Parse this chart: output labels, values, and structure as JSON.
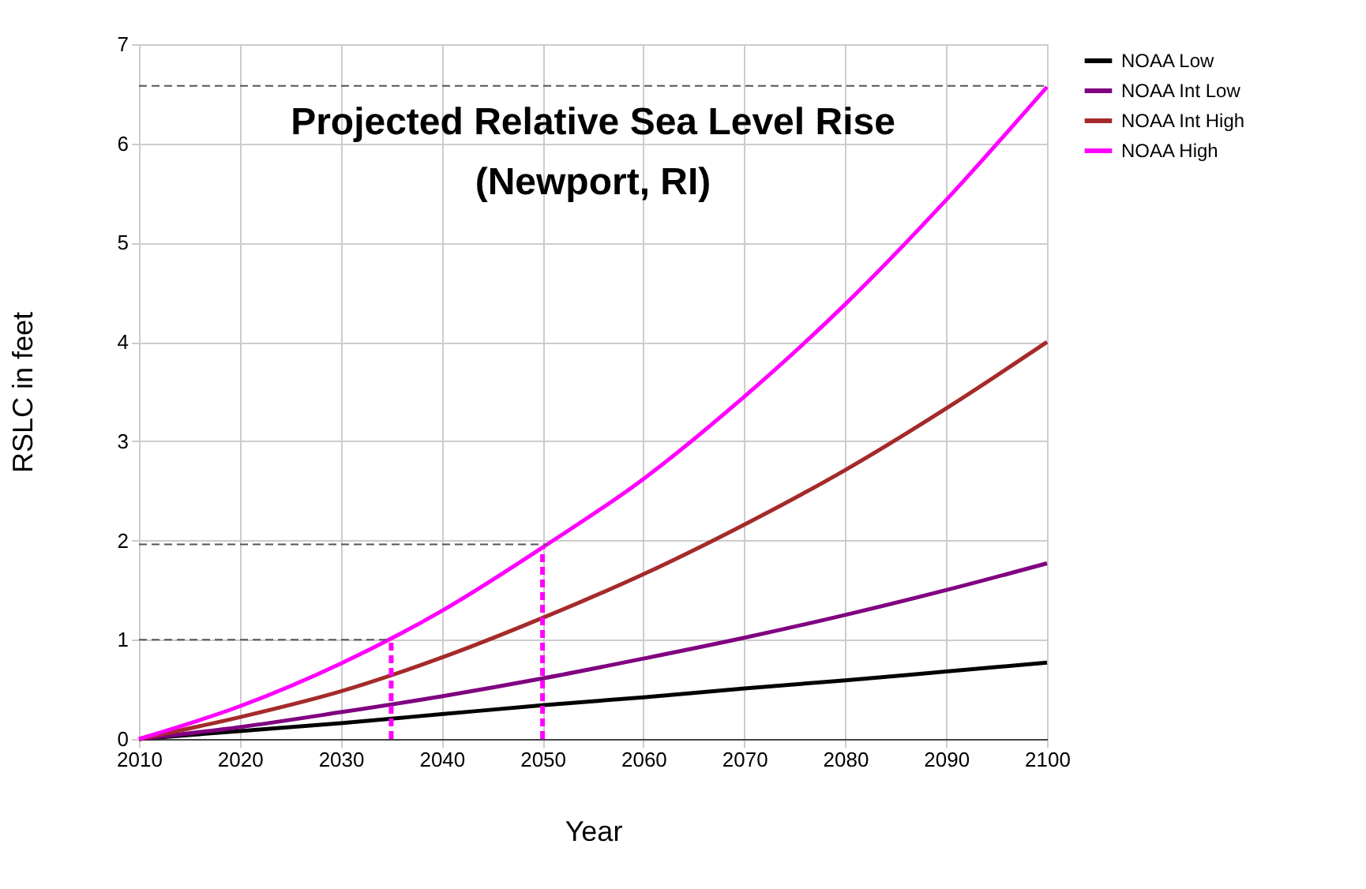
{
  "chart_data": {
    "type": "line",
    "title": "Projected Relative Sea Level Rise",
    "subtitle": "(Newport, RI)",
    "xlabel": "Year",
    "ylabel": "RSLC in feet",
    "x": [
      2010,
      2020,
      2030,
      2040,
      2050,
      2060,
      2070,
      2080,
      2090,
      2100
    ],
    "series": [
      {
        "name": "NOAA Low",
        "color": "#000000",
        "values": [
          0,
          0.08,
          0.16,
          0.25,
          0.34,
          0.42,
          0.51,
          0.59,
          0.68,
          0.77
        ]
      },
      {
        "name": "NOAA Int Low",
        "color": "#800080",
        "values": [
          0,
          0.12,
          0.27,
          0.43,
          0.61,
          0.81,
          1.02,
          1.25,
          1.5,
          1.77
        ]
      },
      {
        "name": "NOAA Int High",
        "color": "#a52a2a",
        "values": [
          0,
          0.22,
          0.48,
          0.82,
          1.22,
          1.66,
          2.16,
          2.71,
          3.33,
          4.0
        ]
      },
      {
        "name": "NOAA High",
        "color": "#ff00ff",
        "values": [
          0,
          0.33,
          0.76,
          1.29,
          1.93,
          2.62,
          3.45,
          4.38,
          5.43,
          6.57
        ]
      }
    ],
    "xlim": [
      2010,
      2100
    ],
    "xticks": [
      2010,
      2020,
      2030,
      2040,
      2050,
      2060,
      2070,
      2080,
      2090,
      2100
    ],
    "ylim": [
      0,
      7
    ],
    "yticks": [
      0,
      1,
      2,
      3,
      4,
      5,
      6,
      7
    ],
    "ref_lines": [
      {
        "axis": "y",
        "value": 1,
        "color": "#555555",
        "line_style": "dashed"
      },
      {
        "axis": "y",
        "value": 1.96,
        "color": "#555555",
        "line_style": "dashed"
      },
      {
        "axis": "y",
        "value": 6.58,
        "color": "#555555",
        "line_style": "dashed"
      },
      {
        "axis": "x",
        "value": 2035,
        "color": "#ff00ff",
        "line_style": "dashed"
      },
      {
        "axis": "x",
        "value": 2050,
        "color": "#ff00ff",
        "line_style": "dashed"
      }
    ],
    "grid": true,
    "legend": "top right",
    "marker": "none",
    "line_style": "solid"
  }
}
